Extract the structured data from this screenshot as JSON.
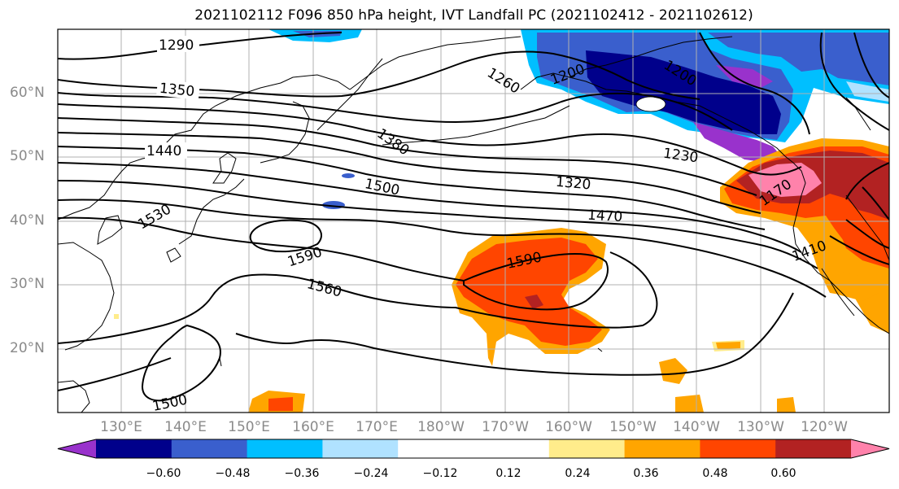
{
  "title": "2021102112 F096 850 hPa height, IVT Landfall PC (2021102412 - 2021102612)",
  "lat_labels": [
    "60°N",
    "50°N",
    "40°N",
    "30°N",
    "20°N"
  ],
  "lon_labels": [
    "130°E",
    "140°E",
    "150°E",
    "160°E",
    "170°E",
    "180°W",
    "170°W",
    "160°W",
    "150°W",
    "140°W",
    "130°W",
    "120°W"
  ],
  "contour_labels": [
    "1290",
    "1350",
    "1440",
    "1530",
    "1380",
    "1500",
    "1590",
    "1560",
    "1500",
    "1260",
    "1200",
    "1200",
    "1230",
    "1320",
    "1470",
    "1590",
    "1170",
    "1410"
  ],
  "colorbar": {
    "colors": [
      "#9932CC",
      "#00008B",
      "#3A5FCD",
      "#00BFFF",
      "#B0E2FF",
      "#FFFFFF",
      "#FFFFFF",
      "#FFEC8B",
      "#FFA500",
      "#FF4500",
      "#B22222",
      "#FF82AB"
    ],
    "tick_labels": [
      "−0.60",
      "−0.48",
      "−0.36",
      "−0.24",
      "−0.12",
      "0.12",
      "0.24",
      "0.36",
      "0.48",
      "0.60"
    ]
  }
}
